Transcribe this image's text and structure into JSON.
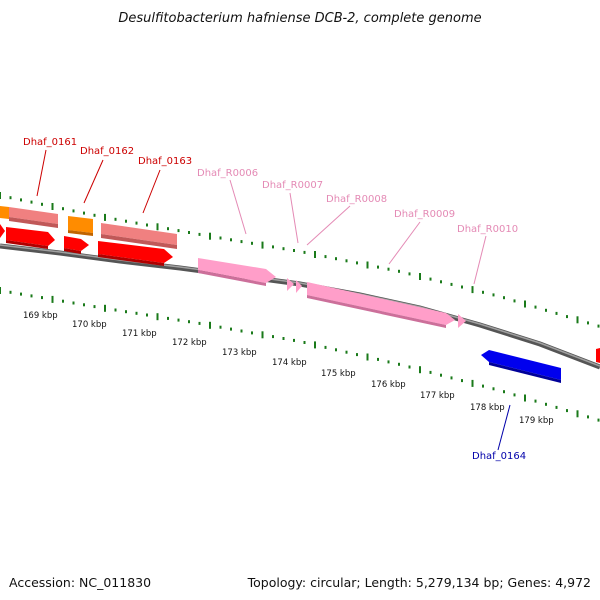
{
  "title": "Desulfitobacterium hafniense DCB-2, complete genome",
  "footer": {
    "accession": "Accession: NC_011830",
    "summary": "Topology: circular; Length: 5,279,134 bp; Genes: 4,972"
  },
  "colors": {
    "cds": "#ff0000",
    "cds_pale": "#f08080",
    "rrna": "#ff9ec9",
    "orange": "#ff8c00",
    "blue": "#0000ee",
    "tick": "#1a7a1a",
    "backbone": "#777777",
    "label_red": "#cc0000",
    "label_pink": "#e48ab5",
    "label_blue": "#0000aa"
  },
  "scale": {
    "labels": [
      "169 kbp",
      "170 kbp",
      "171 kbp",
      "172 kbp",
      "173 kbp",
      "174 kbp",
      "175 kbp",
      "176 kbp",
      "177 kbp",
      "178 kbp",
      "179 kbp"
    ]
  },
  "gene_labels": [
    {
      "text": "Dhaf_0161",
      "kind": "red"
    },
    {
      "text": "Dhaf_0162",
      "kind": "red"
    },
    {
      "text": "Dhaf_0163",
      "kind": "red"
    },
    {
      "text": "Dhaf_R0006",
      "kind": "pink"
    },
    {
      "text": "Dhaf_R0007",
      "kind": "pink"
    },
    {
      "text": "Dhaf_R0008",
      "kind": "pink"
    },
    {
      "text": "Dhaf_R0009",
      "kind": "pink"
    },
    {
      "text": "Dhaf_R0010",
      "kind": "pink"
    },
    {
      "text": "Dhaf_0164",
      "kind": "blue"
    }
  ]
}
